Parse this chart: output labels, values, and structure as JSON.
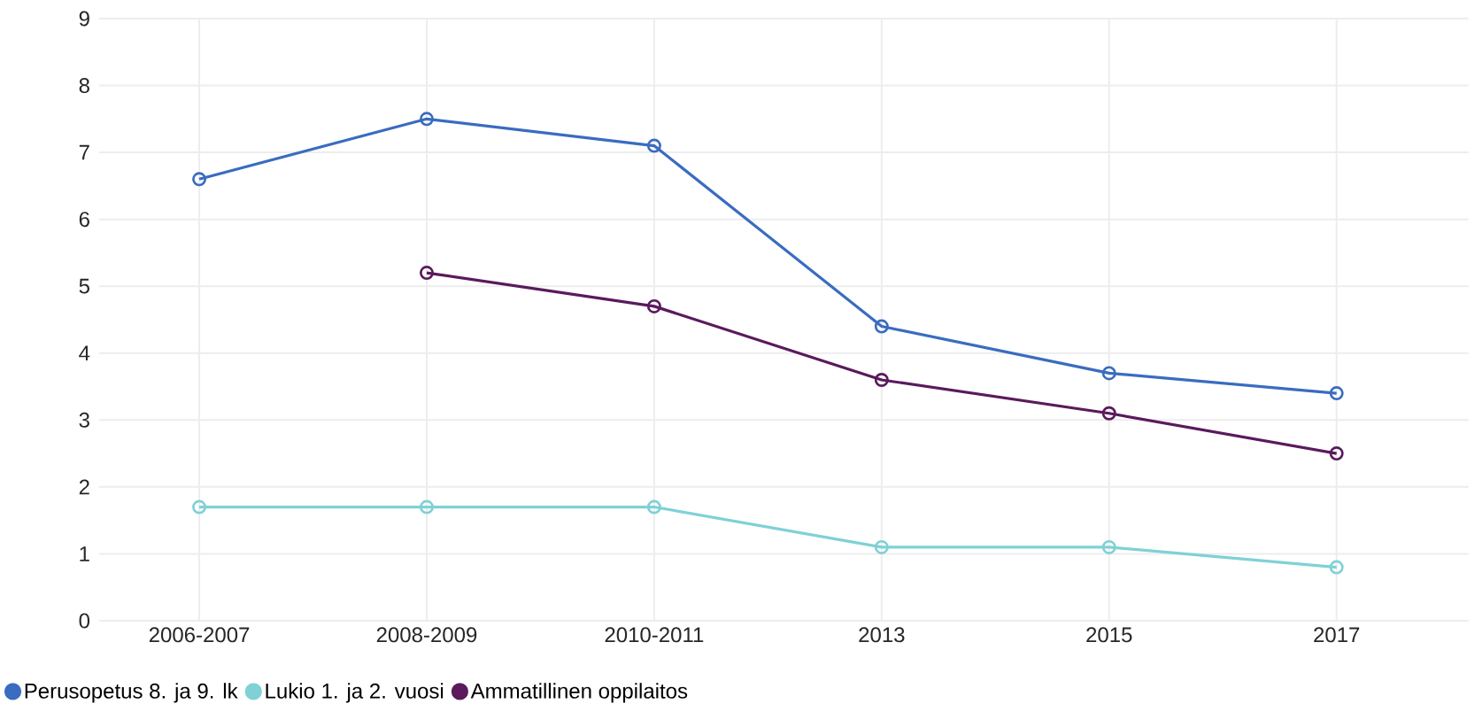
{
  "chart_data": {
    "type": "line",
    "categories": [
      "2006-2007",
      "2008-2009",
      "2010-2011",
      "2013",
      "2015",
      "2017"
    ],
    "series": [
      {
        "name": "Perusopetus 8. ja 9. lk",
        "color": "#3a6cc0",
        "values": [
          6.6,
          7.5,
          7.1,
          4.4,
          3.7,
          3.4
        ]
      },
      {
        "name": "Lukio 1. ja 2. vuosi",
        "color": "#7fd1d6",
        "values": [
          1.7,
          1.7,
          1.7,
          1.1,
          1.1,
          0.8
        ]
      },
      {
        "name": "Ammatillinen oppilaitos",
        "color": "#5a1a5c",
        "values": [
          null,
          5.2,
          4.7,
          3.6,
          3.1,
          2.5
        ]
      }
    ],
    "ylim": [
      0,
      9
    ],
    "yticks": [
      0,
      1,
      2,
      3,
      4,
      5,
      6,
      7,
      8,
      9
    ],
    "grid": true,
    "legend": "bottom left",
    "marker": "circle",
    "line_style": "solid"
  }
}
